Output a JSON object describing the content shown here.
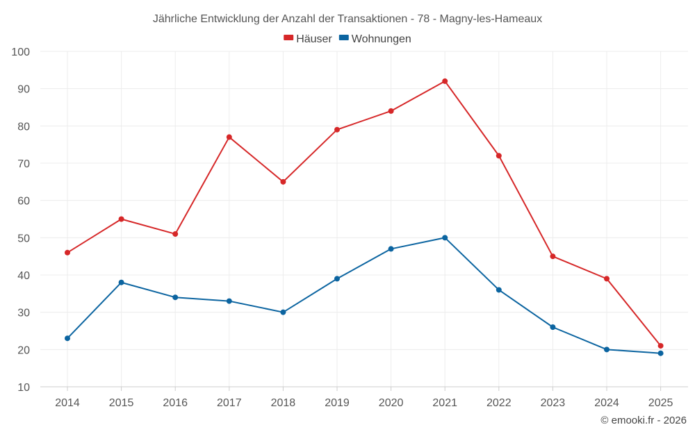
{
  "chart_data": {
    "type": "line",
    "title": "Jährliche Entwicklung der Anzahl der Transaktionen - 78 - Magny-les-Hameaux",
    "categories": [
      "2014",
      "2015",
      "2016",
      "2017",
      "2018",
      "2019",
      "2020",
      "2021",
      "2022",
      "2023",
      "2024",
      "2025"
    ],
    "ylim": [
      10,
      100
    ],
    "yticks": [
      10,
      20,
      30,
      40,
      50,
      60,
      70,
      80,
      90,
      100
    ],
    "grid": true,
    "legend_position": "top-center",
    "series": [
      {
        "name": "Häuser",
        "color": "#d62728",
        "values": [
          46,
          55,
          51,
          77,
          65,
          79,
          84,
          92,
          72,
          45,
          39,
          21
        ]
      },
      {
        "name": "Wohnungen",
        "color": "#0b64a0",
        "values": [
          23,
          38,
          34,
          33,
          30,
          39,
          47,
          50,
          36,
          26,
          20,
          19
        ]
      }
    ],
    "credit": "© emooki.fr - 2026"
  }
}
